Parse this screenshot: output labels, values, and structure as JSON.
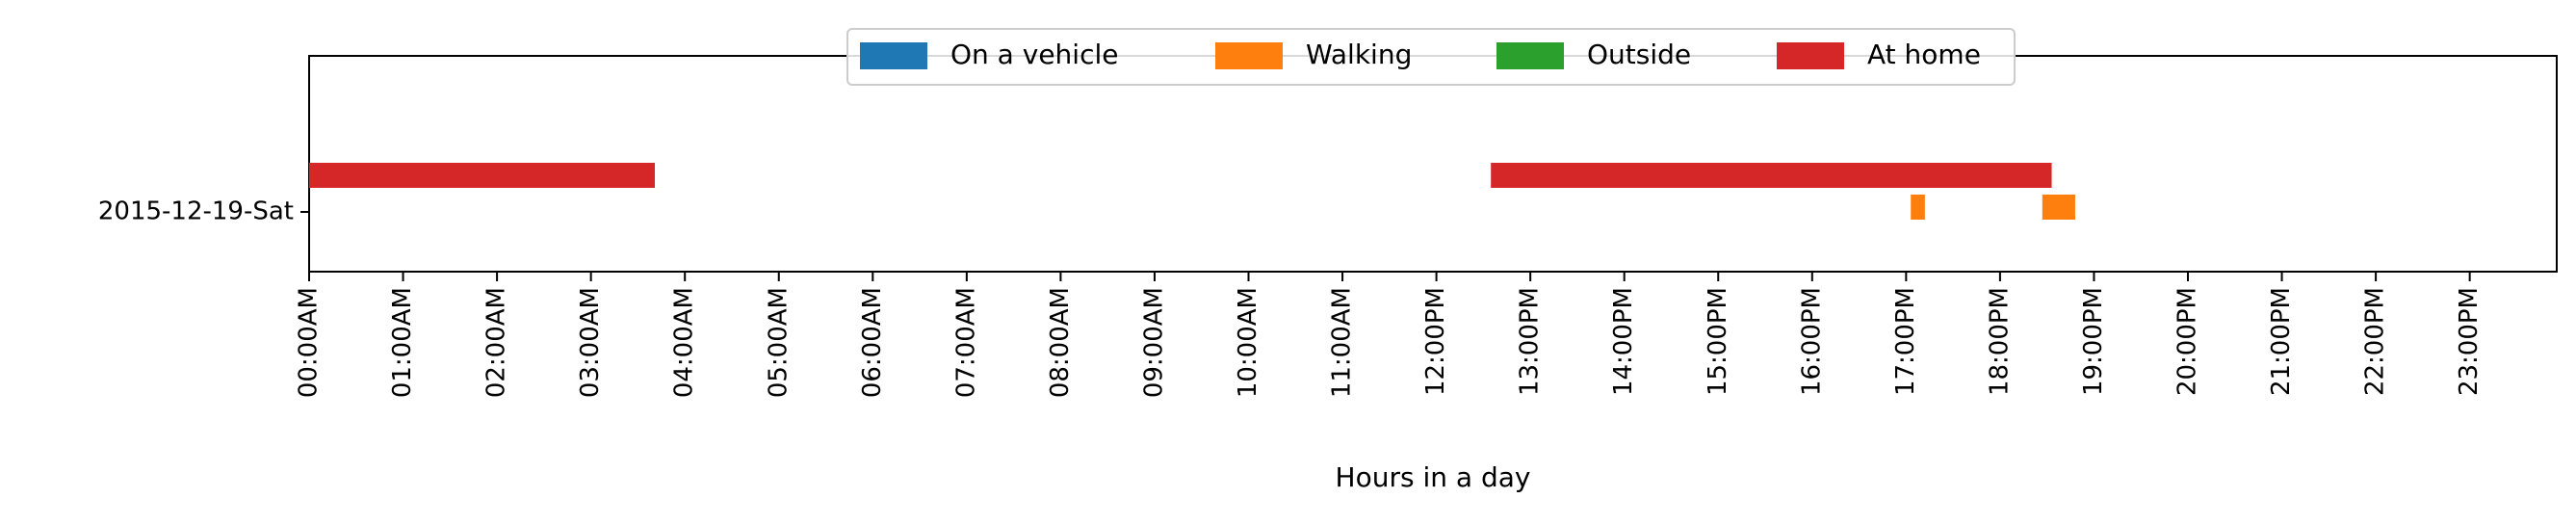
{
  "chart_data": {
    "type": "bar",
    "orientation": "horizontal",
    "title": "",
    "xlabel": "Hours in a day",
    "ylabel": "",
    "xlim": [
      0,
      24
    ],
    "x_unit": "hours",
    "grid": false,
    "categories": [
      "2015-12-19-Sat"
    ],
    "xtick_labels": [
      "00:00AM",
      "01:00AM",
      "02:00AM",
      "03:00AM",
      "04:00AM",
      "05:00AM",
      "06:00AM",
      "07:00AM",
      "08:00AM",
      "09:00AM",
      "10:00AM",
      "11:00AM",
      "12:00PM",
      "13:00PM",
      "14:00PM",
      "15:00PM",
      "16:00PM",
      "17:00PM",
      "18:00PM",
      "19:00PM",
      "20:00PM",
      "21:00PM",
      "22:00PM",
      "23:00PM"
    ],
    "legend": {
      "position": "top-center",
      "entries": [
        {
          "label": "On a vehicle",
          "color": "#1f77b4"
        },
        {
          "label": "Walking",
          "color": "#ff7f0e"
        },
        {
          "label": "Outside",
          "color": "#2ca02c"
        },
        {
          "label": "At home",
          "color": "#d62728"
        }
      ]
    },
    "series": [
      {
        "name": "On a vehicle",
        "color": "#1f77b4",
        "lane": 0,
        "intervals": []
      },
      {
        "name": "Walking",
        "color": "#ff7f0e",
        "lane": 1,
        "intervals": [
          [
            17.05,
            17.2
          ],
          [
            18.45,
            18.8
          ]
        ]
      },
      {
        "name": "Outside",
        "color": "#2ca02c",
        "lane": 2,
        "intervals": []
      },
      {
        "name": "At home",
        "color": "#d62728",
        "lane": 3,
        "intervals": [
          [
            0.0,
            3.68
          ],
          [
            12.58,
            18.55
          ]
        ]
      }
    ]
  }
}
